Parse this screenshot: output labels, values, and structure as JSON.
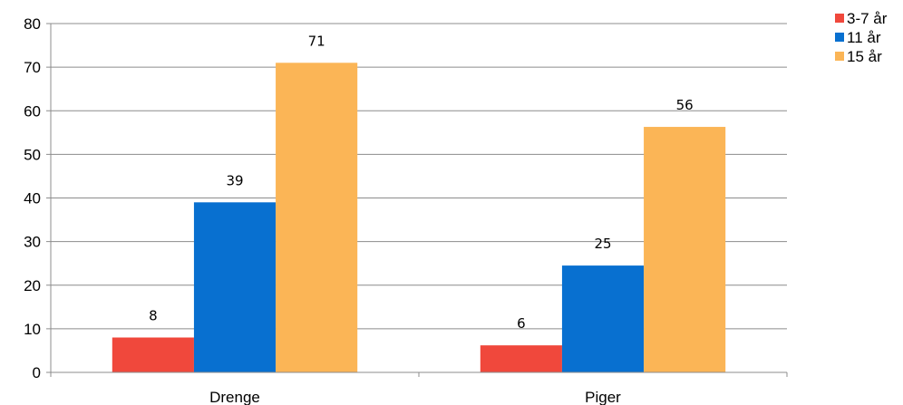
{
  "chart_data": {
    "type": "bar",
    "categories": [
      "Drenge",
      "Piger"
    ],
    "series": [
      {
        "name": "3-7 år",
        "color": "#f0483c",
        "values": [
          8,
          6.2
        ]
      },
      {
        "name": "11 år",
        "color": "#0870d0",
        "values": [
          39,
          24.5
        ]
      },
      {
        "name": "15 år",
        "color": "#fbb556",
        "values": [
          71,
          56.3
        ]
      }
    ],
    "data_labels": [
      [
        "8",
        "39",
        "71"
      ],
      [
        "6",
        "25",
        "56"
      ]
    ],
    "yticks": [
      "0",
      "10",
      "20",
      "30",
      "40",
      "50",
      "60",
      "70",
      "80"
    ],
    "ylim": [
      0,
      80
    ],
    "grid": true,
    "legend_position": "top-right"
  }
}
